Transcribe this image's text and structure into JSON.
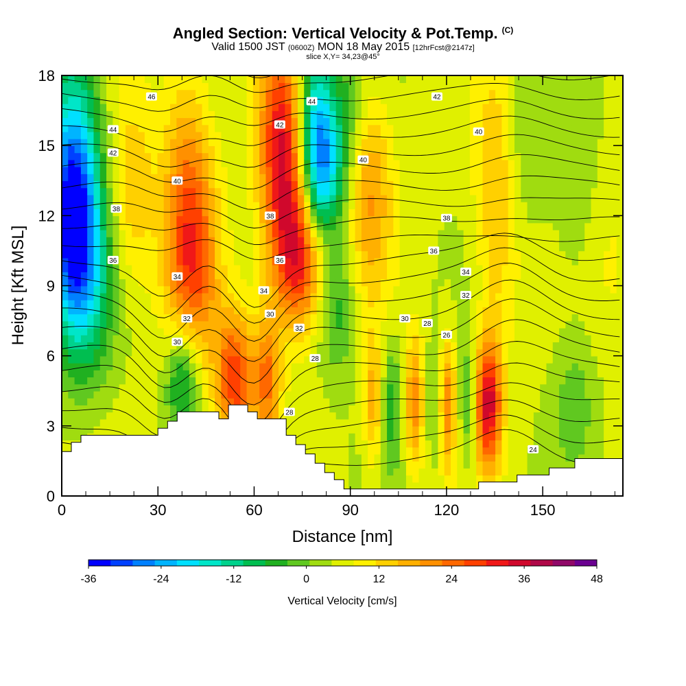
{
  "header": {
    "title": "Angled Section: Vertical Velocity & Pot.Temp.",
    "copyright": "(C)",
    "valid_prefix": "Valid 1500 JST",
    "valid_utc": "(0600Z)",
    "valid_date": "MON 18 May 2015",
    "forecast": "[12hrFcst@2147z]",
    "slice": "slice X,Y= 34,23@45°"
  },
  "chart_data": {
    "type": "heatmap",
    "xlabel": "Distance [nm]",
    "ylabel": "Height [Kft MSL]",
    "xlim": [
      0,
      175
    ],
    "ylim": [
      0,
      18
    ],
    "x_ticks": [
      0,
      30,
      60,
      90,
      120,
      150
    ],
    "y_ticks": [
      0,
      3,
      6,
      9,
      12,
      15,
      18
    ],
    "colorbar": {
      "title": "Vertical Velocity [cm/s]",
      "ticks": [
        -36,
        -24,
        -12,
        0,
        12,
        24,
        36,
        48
      ],
      "range": [
        -36,
        48
      ],
      "colors": [
        "#0000ff",
        "#0040ff",
        "#0080ff",
        "#00b4ff",
        "#00e0ff",
        "#00e6c8",
        "#00d28c",
        "#00be50",
        "#20b020",
        "#60c820",
        "#a0dc10",
        "#e0f000",
        "#fff000",
        "#ffd000",
        "#ffb000",
        "#ff9000",
        "#ff6800",
        "#ff4000",
        "#f01818",
        "#d0082c",
        "#b00848",
        "#900868",
        "#6a0090"
      ]
    },
    "contour_labels": [
      {
        "v": "46",
        "x": 28,
        "y": 17.1
      },
      {
        "v": "44",
        "x": 16,
        "y": 15.7
      },
      {
        "v": "42",
        "x": 16,
        "y": 14.7
      },
      {
        "v": "40",
        "x": 36,
        "y": 13.5
      },
      {
        "v": "38",
        "x": 17,
        "y": 12.3
      },
      {
        "v": "36",
        "x": 16,
        "y": 10.1
      },
      {
        "v": "34",
        "x": 36,
        "y": 9.4
      },
      {
        "v": "32",
        "x": 39,
        "y": 7.6
      },
      {
        "v": "30",
        "x": 36,
        "y": 6.6
      },
      {
        "v": "44",
        "x": 78,
        "y": 16.9
      },
      {
        "v": "42",
        "x": 68,
        "y": 15.9
      },
      {
        "v": "40",
        "x": 94,
        "y": 14.4
      },
      {
        "v": "38",
        "x": 65,
        "y": 12.0
      },
      {
        "v": "36",
        "x": 68,
        "y": 10.1
      },
      {
        "v": "34",
        "x": 63,
        "y": 8.8
      },
      {
        "v": "30",
        "x": 65,
        "y": 7.8
      },
      {
        "v": "32",
        "x": 74,
        "y": 7.2
      },
      {
        "v": "28",
        "x": 79,
        "y": 5.9
      },
      {
        "v": "28",
        "x": 71,
        "y": 3.6
      },
      {
        "v": "42",
        "x": 117,
        "y": 17.1
      },
      {
        "v": "40",
        "x": 130,
        "y": 15.6
      },
      {
        "v": "38",
        "x": 120,
        "y": 11.9
      },
      {
        "v": "36",
        "x": 116,
        "y": 10.5
      },
      {
        "v": "34",
        "x": 126,
        "y": 9.6
      },
      {
        "v": "32",
        "x": 126,
        "y": 8.6
      },
      {
        "v": "30",
        "x": 107,
        "y": 7.6
      },
      {
        "v": "28",
        "x": 114,
        "y": 7.4
      },
      {
        "v": "26",
        "x": 120,
        "y": 6.9
      },
      {
        "v": "24",
        "x": 147,
        "y": 2.0
      }
    ],
    "terrain": [
      [
        0,
        1.9
      ],
      [
        3,
        1.9
      ],
      [
        3,
        2.3
      ],
      [
        6,
        2.3
      ],
      [
        6,
        2.6
      ],
      [
        9,
        2.6
      ],
      [
        30,
        2.6
      ],
      [
        30,
        2.9
      ],
      [
        33,
        2.9
      ],
      [
        33,
        3.2
      ],
      [
        36,
        3.2
      ],
      [
        36,
        3.6
      ],
      [
        49,
        3.6
      ],
      [
        49,
        3.3
      ],
      [
        52,
        3.3
      ],
      [
        52,
        3.9
      ],
      [
        58,
        3.9
      ],
      [
        58,
        3.6
      ],
      [
        61,
        3.6
      ],
      [
        61,
        3.3
      ],
      [
        70,
        3.3
      ],
      [
        70,
        2.6
      ],
      [
        73,
        2.6
      ],
      [
        73,
        2.2
      ],
      [
        76,
        2.2
      ],
      [
        76,
        1.8
      ],
      [
        79,
        1.8
      ],
      [
        79,
        1.4
      ],
      [
        82,
        1.4
      ],
      [
        82,
        1.0
      ],
      [
        85,
        1.0
      ],
      [
        85,
        0.7
      ],
      [
        88,
        0.7
      ],
      [
        88,
        0.3
      ],
      [
        130,
        0.3
      ],
      [
        130,
        0.6
      ],
      [
        142,
        0.6
      ],
      [
        142,
        0.9
      ],
      [
        152,
        0.9
      ],
      [
        152,
        1.2
      ],
      [
        160,
        1.2
      ],
      [
        160,
        1.6
      ],
      [
        175,
        1.6
      ]
    ],
    "vv_field": [
      {
        "x": 3,
        "y": 11.5,
        "v": -24,
        "sx": 5,
        "sy": 3
      },
      {
        "x": 4,
        "y": 14.5,
        "v": -20,
        "sx": 6,
        "sy": 4
      },
      {
        "x": 8,
        "y": 9,
        "v": -14,
        "sx": 6,
        "sy": 3
      },
      {
        "x": 22,
        "y": 13,
        "v": 10,
        "sx": 5,
        "sy": 3
      },
      {
        "x": 38,
        "y": 11,
        "v": 16,
        "sx": 5,
        "sy": 5
      },
      {
        "x": 43,
        "y": 10,
        "v": 12,
        "sx": 5,
        "sy": 4
      },
      {
        "x": 38,
        "y": 5,
        "v": -22,
        "sx": 4,
        "sy": 2
      },
      {
        "x": 54,
        "y": 5,
        "v": 24,
        "sx": 4,
        "sy": 2
      },
      {
        "x": 64,
        "y": 5,
        "v": 18,
        "sx": 3,
        "sy": 2
      },
      {
        "x": 68,
        "y": 16,
        "v": 20,
        "sx": 5,
        "sy": 3
      },
      {
        "x": 70,
        "y": 12,
        "v": 18,
        "sx": 5,
        "sy": 3
      },
      {
        "x": 75,
        "y": 10,
        "v": 20,
        "sx": 5,
        "sy": 2
      },
      {
        "x": 79,
        "y": 16,
        "v": -22,
        "sx": 4,
        "sy": 3
      },
      {
        "x": 82,
        "y": 14,
        "v": -18,
        "sx": 4,
        "sy": 2
      },
      {
        "x": 86,
        "y": 8,
        "v": -10,
        "sx": 4,
        "sy": 2
      },
      {
        "x": 89,
        "y": 16,
        "v": -8,
        "sx": 4,
        "sy": 3
      },
      {
        "x": 96,
        "y": 13,
        "v": 14,
        "sx": 5,
        "sy": 3
      },
      {
        "x": 97,
        "y": 4,
        "v": 12,
        "sx": 2,
        "sy": 2
      },
      {
        "x": 103,
        "y": 4,
        "v": -10,
        "sx": 2,
        "sy": 2
      },
      {
        "x": 110,
        "y": 4,
        "v": 16,
        "sx": 2,
        "sy": 2
      },
      {
        "x": 117,
        "y": 4,
        "v": -8,
        "sx": 2,
        "sy": 2
      },
      {
        "x": 120,
        "y": 4,
        "v": 18,
        "sx": 2,
        "sy": 2
      },
      {
        "x": 127,
        "y": 4,
        "v": -10,
        "sx": 2,
        "sy": 2
      },
      {
        "x": 133,
        "y": 4,
        "v": 30,
        "sx": 3,
        "sy": 2
      },
      {
        "x": 136,
        "y": 13,
        "v": 12,
        "sx": 5,
        "sy": 4
      },
      {
        "x": 143,
        "y": 15,
        "v": -6,
        "sx": 5,
        "sy": 3
      },
      {
        "x": 160,
        "y": 13,
        "v": -4,
        "sx": 6,
        "sy": 4
      },
      {
        "x": 160,
        "y": 4,
        "v": -6,
        "sx": 5,
        "sy": 2
      },
      {
        "x": 172,
        "y": 10,
        "v": 4,
        "sx": 6,
        "sy": 3
      }
    ]
  }
}
